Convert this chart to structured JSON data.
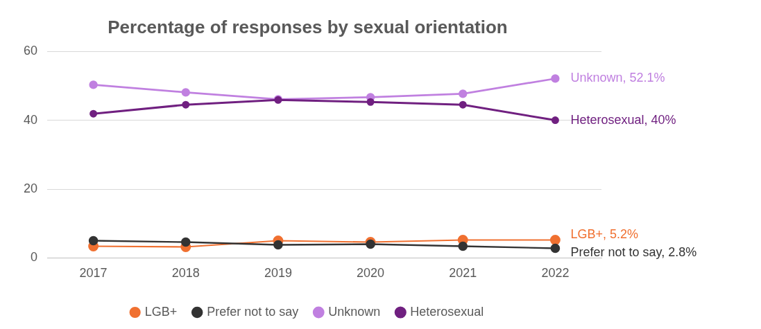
{
  "chart_data": {
    "type": "line",
    "title": "Percentage of responses by sexual orientation",
    "categories": [
      "2017",
      "2018",
      "2019",
      "2020",
      "2021",
      "2022"
    ],
    "series": [
      {
        "name": "LGB+",
        "color": "#f07030",
        "values": [
          3.4,
          3.2,
          5.0,
          4.6,
          5.2,
          5.2
        ]
      },
      {
        "name": "Prefer not to say",
        "color": "#333333",
        "values": [
          5.0,
          4.6,
          3.8,
          4.0,
          3.4,
          2.8
        ]
      },
      {
        "name": "Unknown",
        "color": "#c080e0",
        "values": [
          50.3,
          48.1,
          46.1,
          46.7,
          47.7,
          52.1
        ]
      },
      {
        "name": "Heterosexual",
        "color": "#702080",
        "values": [
          41.9,
          44.5,
          45.9,
          45.3,
          44.5,
          40
        ]
      }
    ],
    "ylim": [
      0,
      60
    ],
    "yticks": [
      0,
      20,
      40,
      60
    ],
    "grid": "y",
    "legend": "bottom",
    "marker": "circle",
    "line_style": "solid",
    "annotations": [
      {
        "text": "Unknown, 52.1%",
        "x": "2022",
        "y": 52.1
      },
      {
        "text": "Heterosexual, 40%",
        "x": "2022",
        "y": 40
      },
      {
        "text": "LGB+, 5.2%",
        "x": "2022",
        "y": 5.2
      },
      {
        "text": "Prefer not to say, 2.8%",
        "x": "2022",
        "y": 2.8
      }
    ]
  }
}
